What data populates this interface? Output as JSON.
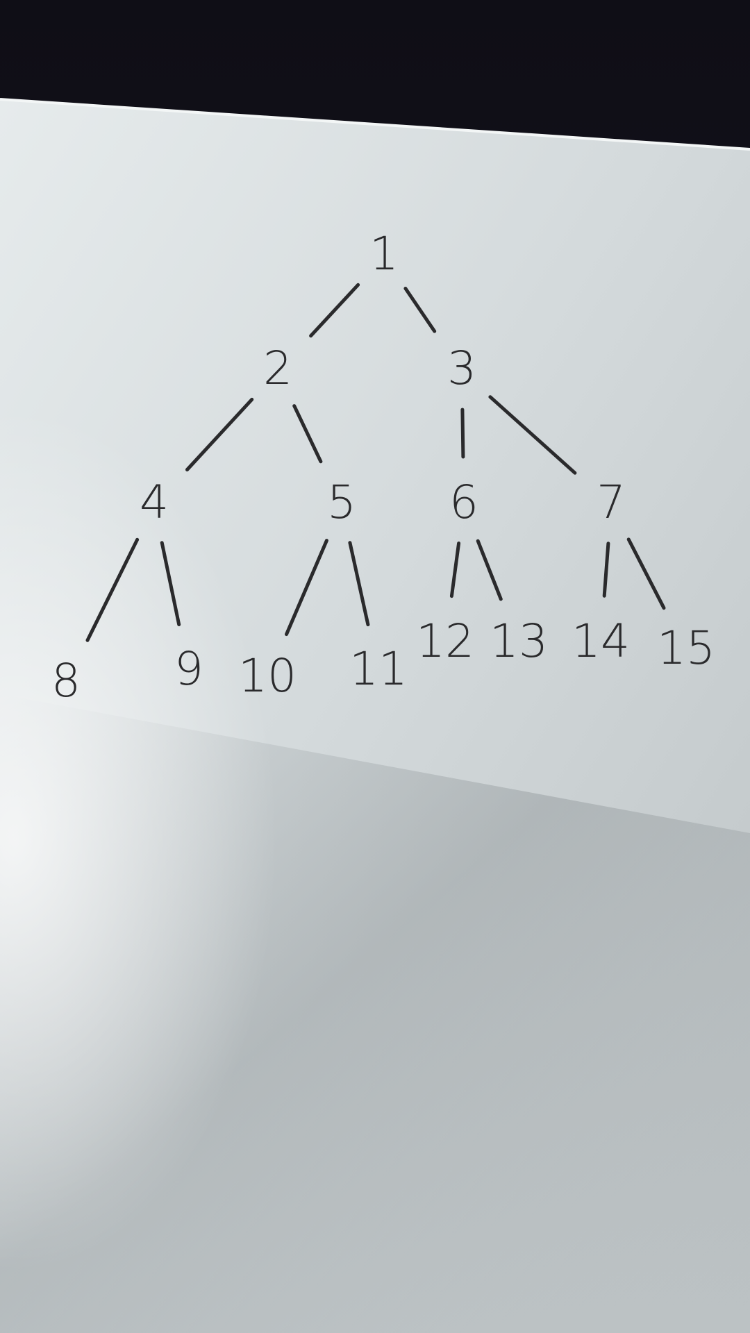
{
  "diagram": {
    "type": "binary-tree",
    "nodes": [
      {
        "id": 1,
        "label": "1"
      },
      {
        "id": 2,
        "label": "2"
      },
      {
        "id": 3,
        "label": "3"
      },
      {
        "id": 4,
        "label": "4"
      },
      {
        "id": 5,
        "label": "5"
      },
      {
        "id": 6,
        "label": "6"
      },
      {
        "id": 7,
        "label": "7"
      },
      {
        "id": 8,
        "label": "8"
      },
      {
        "id": 9,
        "label": "9"
      },
      {
        "id": 10,
        "label": "10"
      },
      {
        "id": 11,
        "label": "11"
      },
      {
        "id": 12,
        "label": "12"
      },
      {
        "id": 13,
        "label": "13"
      },
      {
        "id": 14,
        "label": "14"
      },
      {
        "id": 15,
        "label": "15"
      }
    ],
    "edges": [
      [
        1,
        2
      ],
      [
        1,
        3
      ],
      [
        2,
        4
      ],
      [
        2,
        5
      ],
      [
        3,
        6
      ],
      [
        3,
        7
      ],
      [
        4,
        8
      ],
      [
        4,
        9
      ],
      [
        5,
        10
      ],
      [
        5,
        11
      ],
      [
        6,
        12
      ],
      [
        6,
        13
      ],
      [
        7,
        14
      ],
      [
        7,
        15
      ]
    ]
  },
  "colors": {
    "ink": "#2a2a2c",
    "paper_light": "#e4e9ea",
    "paper_shadow": "#a7adb0",
    "background": "#13121a"
  }
}
